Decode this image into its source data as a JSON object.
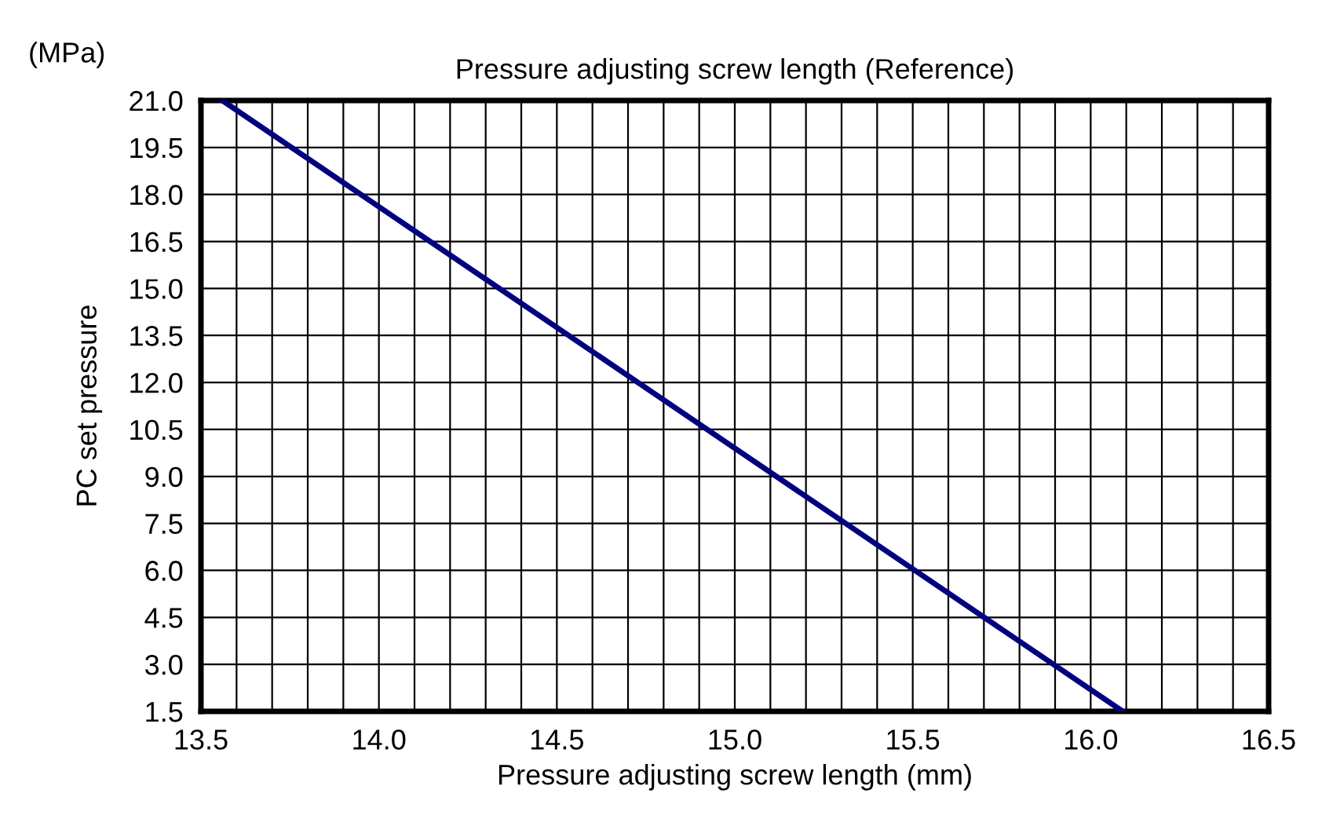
{
  "chart_data": {
    "type": "line",
    "title": "Pressure adjusting screw length (Reference)",
    "xlabel": "Pressure adjusting screw length (mm)",
    "ylabel": "PC set pressure",
    "annotations": [
      "(MPa)"
    ],
    "series": [
      {
        "color": "#000080",
        "x": [
          13.56,
          16.09
        ],
        "values": [
          21.0,
          1.5
        ]
      }
    ],
    "xlim": [
      13.5,
      16.5
    ],
    "xticks": [
      13.5,
      {
        "value": 13.6,
        "label": null
      },
      {
        "value": 13.7,
        "label": null
      },
      {
        "value": 13.8,
        "label": null
      },
      {
        "value": 13.9,
        "label": null
      },
      {
        "value": 14.0,
        "label": "14.0"
      },
      {
        "value": 14.1,
        "label": null
      },
      {
        "value": 14.2,
        "label": null
      },
      {
        "value": 14.3,
        "label": null
      },
      {
        "value": 14.4,
        "label": null
      },
      14.5,
      {
        "value": 14.6,
        "label": null
      },
      {
        "value": 14.7,
        "label": null
      },
      {
        "value": 14.8,
        "label": null
      },
      {
        "value": 14.9,
        "label": null
      },
      {
        "value": 15.0,
        "label": "15.0"
      },
      {
        "value": 15.1,
        "label": null
      },
      {
        "value": 15.2,
        "label": null
      },
      {
        "value": 15.3,
        "label": null
      },
      {
        "value": 15.4,
        "label": null
      },
      15.5,
      {
        "value": 15.6,
        "label": null
      },
      {
        "value": 15.7,
        "label": null
      },
      {
        "value": 15.8,
        "label": null
      },
      {
        "value": 15.9,
        "label": null
      },
      {
        "value": 16.0,
        "label": "16.0"
      },
      {
        "value": 16.1,
        "label": null
      },
      {
        "value": 16.2,
        "label": null
      },
      {
        "value": 16.3,
        "label": null
      },
      {
        "value": 16.4,
        "label": null
      },
      16.5
    ],
    "ylim": [
      1.5,
      21.0
    ],
    "yticks": [
      1.5,
      {
        "value": 3.0,
        "label": "3.0"
      },
      4.5,
      {
        "value": 6.0,
        "label": "6.0"
      },
      7.5,
      {
        "value": 9.0,
        "label": "9.0"
      },
      10.5,
      {
        "value": 12.0,
        "label": "12.0"
      },
      13.5,
      {
        "value": 15.0,
        "label": "15.0"
      },
      16.5,
      {
        "value": 18.0,
        "label": "18.0"
      },
      19.5,
      {
        "value": 21.0,
        "label": "21.0"
      }
    ],
    "grid": true,
    "marker": "none",
    "line_style": "solid"
  }
}
